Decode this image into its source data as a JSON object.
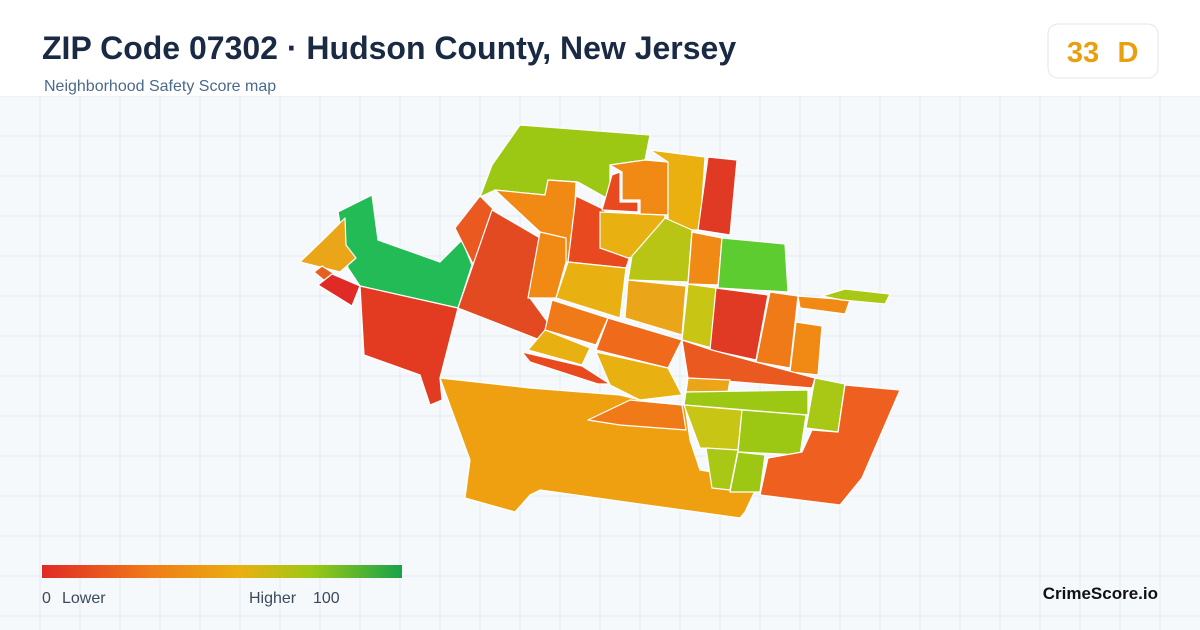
{
  "header": {
    "title": "ZIP Code 07302 · Hudson County, New Jersey",
    "subtitle": "Neighborhood Safety Score map"
  },
  "score": {
    "value": 33,
    "grade": "D"
  },
  "legend": {
    "min": 0,
    "min_label": "Lower",
    "max_label": "Higher",
    "max": 100
  },
  "brand": "CrimeScore.io"
}
